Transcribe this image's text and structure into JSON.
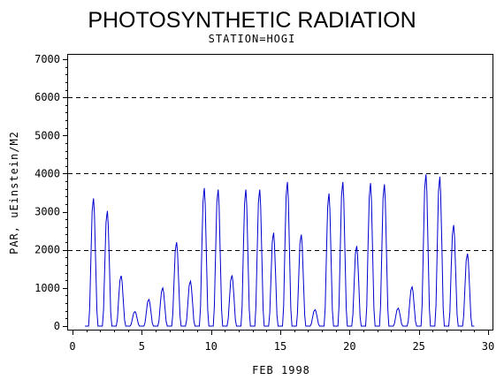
{
  "chart_data": {
    "type": "line",
    "title": "PHOTOSYNTHETIC RADIATION",
    "subtitle": "STATION=HOGI",
    "xlabel": "FEB 1998",
    "ylabel": "PAR, uEinstein/M2",
    "xlim": [
      0,
      30
    ],
    "ylim": [
      0,
      7000
    ],
    "xticks": [
      0,
      5,
      10,
      15,
      20,
      25,
      30
    ],
    "xtick_labels": [
      "0",
      "5",
      "10",
      "15",
      "20",
      "25",
      "30"
    ],
    "yticks": [
      0,
      1000,
      2000,
      3000,
      4000,
      5000,
      6000,
      7000
    ],
    "ytick_labels": [
      "0",
      "1000",
      "2000",
      "3000",
      "4000",
      "5000",
      "6000",
      "7000"
    ],
    "gridlines_y": [
      2000,
      4000,
      6000
    ],
    "grid": "dashed horizontal at 2000, 4000, 6000",
    "series_color": "#0000d0",
    "daily_peaks": [
      {
        "day": 1.5,
        "value": 3350
      },
      {
        "day": 2.5,
        "value": 3020
      },
      {
        "day": 3.5,
        "value": 1320
      },
      {
        "day": 4.5,
        "value": 380
      },
      {
        "day": 5.5,
        "value": 700
      },
      {
        "day": 6.5,
        "value": 1000
      },
      {
        "day": 7.5,
        "value": 2200
      },
      {
        "day": 8.5,
        "value": 1180
      },
      {
        "day": 9.5,
        "value": 3620
      },
      {
        "day": 10.5,
        "value": 3580
      },
      {
        "day": 11.5,
        "value": 1330
      },
      {
        "day": 12.5,
        "value": 3580
      },
      {
        "day": 13.5,
        "value": 3580
      },
      {
        "day": 14.5,
        "value": 2450
      },
      {
        "day": 15.5,
        "value": 3780
      },
      {
        "day": 16.5,
        "value": 2400
      },
      {
        "day": 17.5,
        "value": 430
      },
      {
        "day": 18.5,
        "value": 3480
      },
      {
        "day": 19.5,
        "value": 3780
      },
      {
        "day": 20.5,
        "value": 2100
      },
      {
        "day": 21.5,
        "value": 3750
      },
      {
        "day": 22.5,
        "value": 3720
      },
      {
        "day": 23.5,
        "value": 470
      },
      {
        "day": 24.5,
        "value": 1030
      },
      {
        "day": 25.5,
        "value": 3980
      },
      {
        "day": 26.5,
        "value": 3920
      },
      {
        "day": 27.5,
        "value": 2650
      },
      {
        "day": 28.5,
        "value": 1900
      }
    ]
  }
}
